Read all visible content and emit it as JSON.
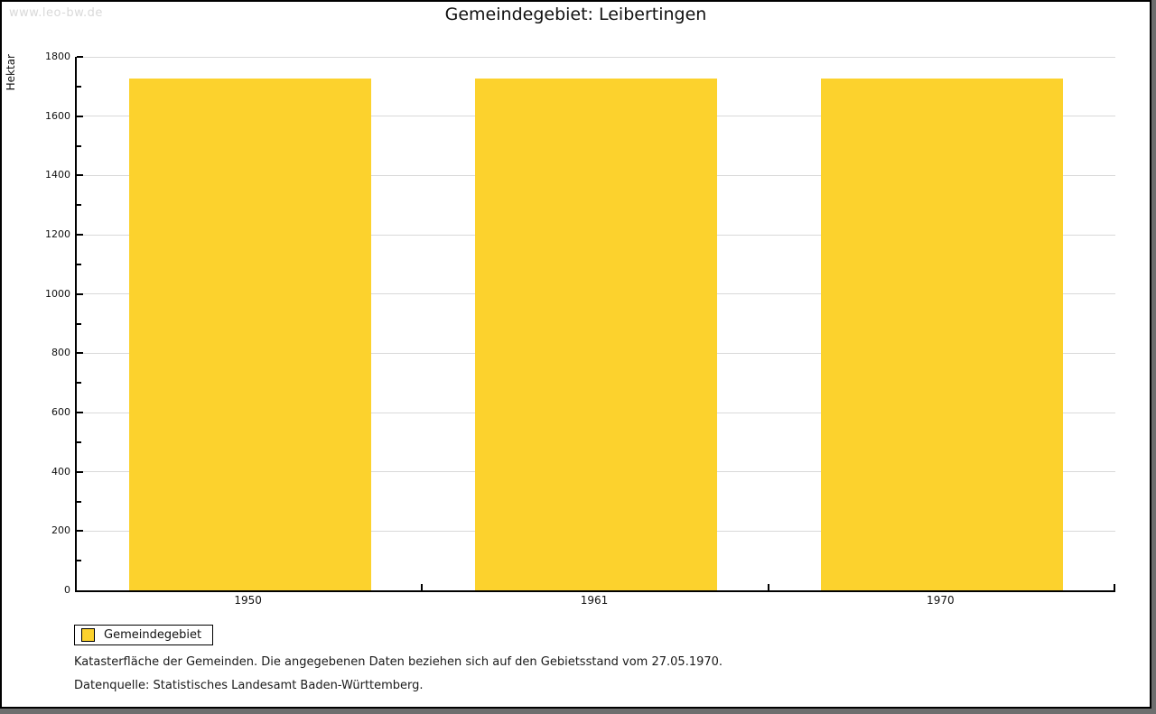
{
  "watermark": "www.leo-bw.de",
  "title": "Gemeindegebiet: Leibertingen",
  "chart_data": {
    "type": "bar",
    "title": "Gemeindegebiet: Leibertingen",
    "categories": [
      "1950",
      "1961",
      "1970"
    ],
    "series": [
      {
        "name": "Gemeindegebiet",
        "values": [
          1728,
          1728,
          1728
        ]
      }
    ],
    "xlabel": "",
    "ylabel": "Hektar",
    "ylim": [
      0,
      1800
    ],
    "ytick_step": 200,
    "minor_tick_step": 100,
    "grid": "horizontal-major",
    "legend_position": "bottom-left",
    "bar_width_fraction": 0.7
  },
  "legend": {
    "label": "Gemeindegebiet"
  },
  "notes": [
    "Katasterfläche der Gemeinden. Die angegebenen Daten beziehen sich auf den Gebietsstand vom 27.05.1970.",
    "Datenquelle: Statistisches Landesamt Baden-Württemberg."
  ],
  "colors": {
    "bar": "#fcd22d",
    "grid": "#d9d9d9",
    "axis": "#000000",
    "watermark": "#d9d9d9"
  }
}
